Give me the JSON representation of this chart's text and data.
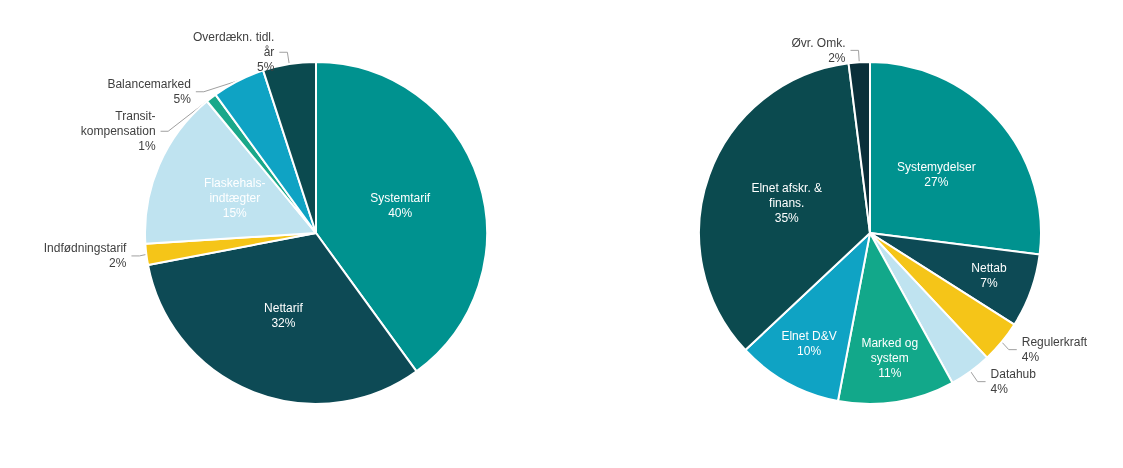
{
  "chart_data": [
    {
      "type": "pie",
      "categories": [
        "Systemtarif",
        "Nettarif",
        "Indfødningstarif",
        "Flaskehals-\nindtægter",
        "Transit-\nkompensation",
        "Balancemarked",
        "Overdækn. tidl.\når"
      ],
      "values": [
        40,
        32,
        2,
        15,
        1,
        5,
        5
      ],
      "value_labels": [
        "40%",
        "32%",
        "2%",
        "15%",
        "1%",
        "5%",
        "5%"
      ],
      "colors": [
        "#00928f",
        "#0d4a55",
        "#f5c518",
        "#bfe3f0",
        "#1aa88a",
        "#0fa3c4",
        "#0b4a4f"
      ],
      "legend": false
    },
    {
      "type": "pie",
      "categories": [
        "Systemydelser",
        "Nettab",
        "Regulerkraft",
        "Datahub",
        "Marked og\nsystem",
        "Elnet D&V",
        "Elnet afskr. &\nfinans.",
        "Øvr. Omk."
      ],
      "values": [
        27,
        7,
        4,
        4,
        11,
        10,
        35,
        2
      ],
      "value_labels": [
        "27%",
        "7%",
        "4%",
        "4%",
        "11%",
        "10%",
        "35%",
        "2%"
      ],
      "colors": [
        "#00928f",
        "#0d4a55",
        "#f5c518",
        "#bfe3f0",
        "#12a88a",
        "#0fa3c4",
        "#0b4a4f",
        "#0a2f3a"
      ],
      "legend": false
    }
  ]
}
